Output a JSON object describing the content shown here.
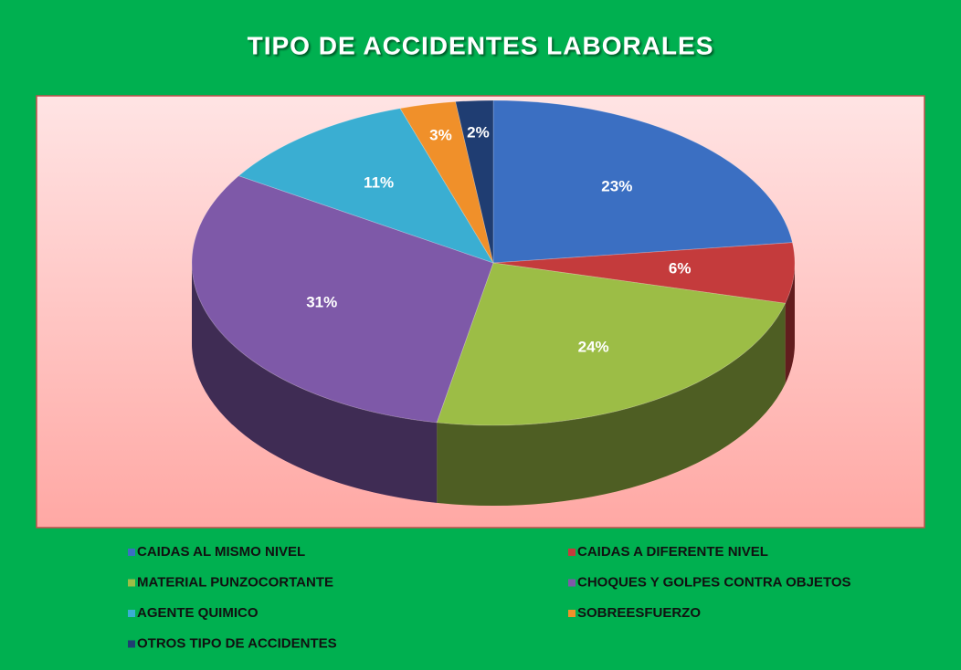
{
  "chart_data": {
    "type": "pie",
    "title": "TIPO DE ACCIDENTES LABORALES",
    "categories": [
      "CAIDAS AL MISMO NIVEL",
      "CAIDAS A DIFERENTE NIVEL",
      "MATERIAL PUNZOCORTANTE",
      "CHOQUES Y GOLPES CONTRA OBJETOS",
      "AGENTE QUIMICO",
      "SOBREESFUERZO",
      "OTROS TIPO DE ACCIDENTES"
    ],
    "values": [
      23,
      6,
      24,
      31,
      11,
      3,
      2
    ],
    "value_labels": [
      "23%",
      "6%",
      "24%",
      "31%",
      "11%",
      "3%",
      "2%"
    ],
    "colors": [
      "#3b6fc2",
      "#c43b3c",
      "#9cbd46",
      "#7e59a8",
      "#3aaed2",
      "#f0902a",
      "#1f3d72"
    ],
    "legend": "bottom"
  }
}
